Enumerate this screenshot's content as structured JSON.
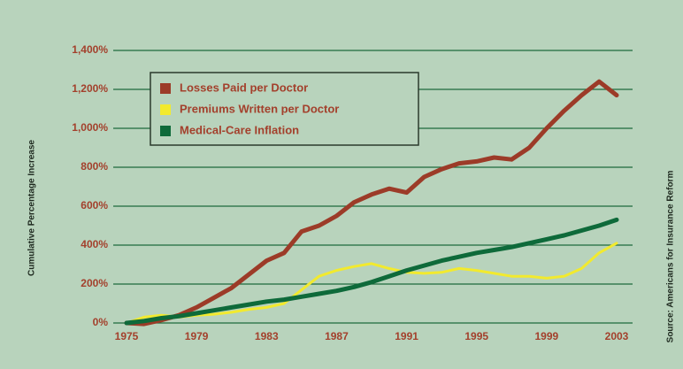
{
  "chart_data": {
    "type": "line",
    "y_label": "Cumulative Percentage Increase",
    "source": "Source: Americans for Insurance Reform",
    "x": [
      1975,
      1976,
      1977,
      1978,
      1979,
      1980,
      1981,
      1982,
      1983,
      1984,
      1985,
      1986,
      1987,
      1988,
      1989,
      1990,
      1991,
      1992,
      1993,
      1994,
      1995,
      1996,
      1997,
      1998,
      1999,
      2000,
      2001,
      2002,
      2003
    ],
    "series": [
      {
        "name": "Losses Paid per Doctor",
        "color": "#9c3b28",
        "values": [
          0,
          -5,
          15,
          40,
          80,
          130,
          180,
          250,
          320,
          360,
          470,
          500,
          550,
          620,
          660,
          690,
          670,
          750,
          790,
          820,
          830,
          850,
          840,
          900,
          1000,
          1090,
          1170,
          1240,
          1170
        ]
      },
      {
        "name": "Premiums Written per Doctor",
        "color": "#f2ea2e",
        "values": [
          0,
          30,
          40,
          30,
          40,
          45,
          55,
          70,
          80,
          100,
          170,
          240,
          270,
          290,
          305,
          280,
          260,
          255,
          260,
          280,
          270,
          255,
          240,
          240,
          230,
          240,
          280,
          360,
          410
        ]
      },
      {
        "name": "Medical-Care Inflation",
        "color": "#0e6a3a",
        "values": [
          0,
          10,
          25,
          35,
          50,
          65,
          80,
          95,
          110,
          120,
          135,
          150,
          165,
          185,
          210,
          240,
          270,
          295,
          320,
          340,
          360,
          375,
          390,
          410,
          430,
          450,
          475,
          500,
          530
        ]
      }
    ],
    "xlim": [
      1975,
      2003
    ],
    "xticks": [
      1975,
      1979,
      1983,
      1987,
      1991,
      1995,
      1999,
      2003
    ],
    "ylim": [
      0,
      1400
    ],
    "yticks": [
      {
        "value": 0,
        "label": "0%"
      },
      {
        "value": 200,
        "label": "200%"
      },
      {
        "value": 400,
        "label": "400%"
      },
      {
        "value": 600,
        "label": "600%"
      },
      {
        "value": 800,
        "label": "800%"
      },
      {
        "value": 1000,
        "label": "1,000%"
      },
      {
        "value": 1200,
        "label": "1,200%"
      },
      {
        "value": 1400,
        "label": "1,400%"
      }
    ],
    "grid": true
  }
}
